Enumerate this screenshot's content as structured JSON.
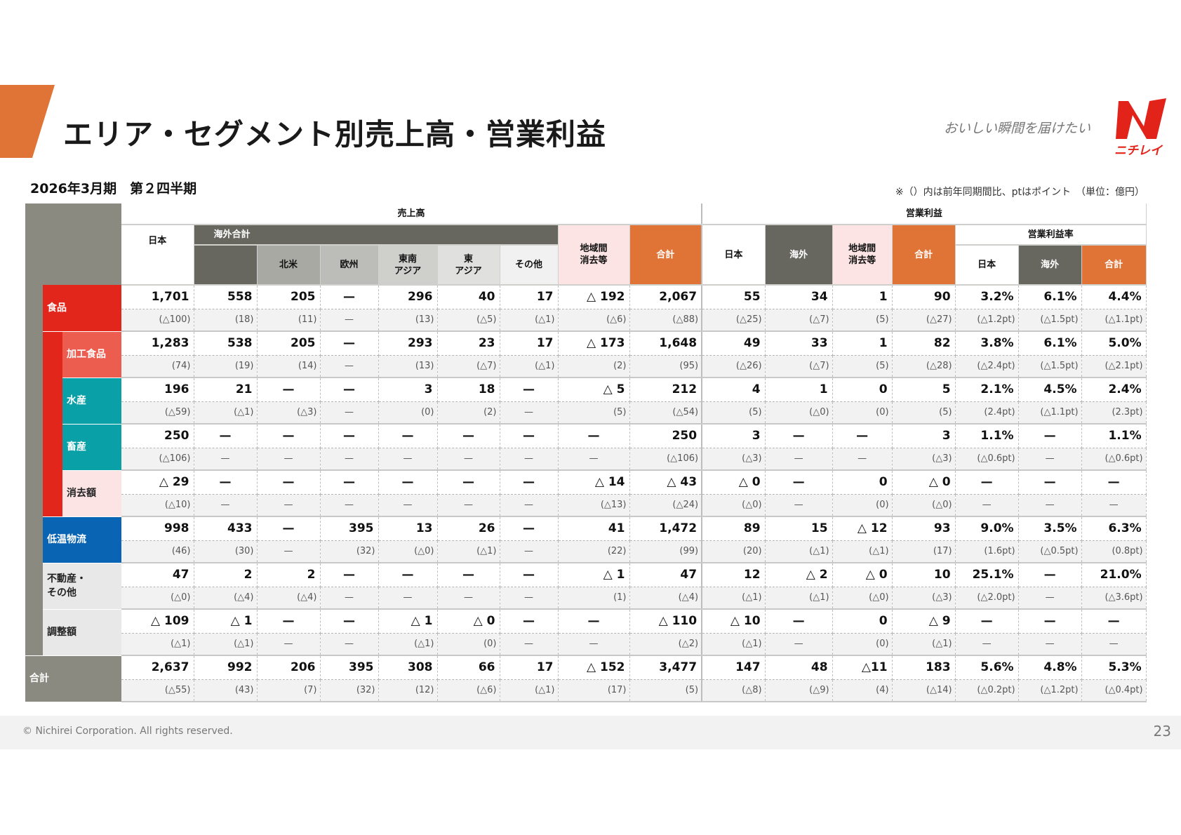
{
  "header": {
    "title": "エリア・セグメント別売上高・営業利益",
    "tagline": "おいしい瞬間を届けたい",
    "logo": {
      "text": "ニチレイ",
      "color": "#e2231a"
    },
    "accent": "#e07436"
  },
  "period": "2026年3月期　第２四半期",
  "note": "※（）内は前年同期間比、ptはポイント　（単位：億円）",
  "table": {
    "group_sales": "売上高",
    "group_op": "営業利益",
    "sales_cols": {
      "japan": "日本",
      "overseas_total": "海外合計",
      "na": "北米",
      "eu": "欧州",
      "sea": "東南\nアジア",
      "ea": "東\nアジア",
      "other": "その他",
      "elim": "地域間\n消去等",
      "total": "合計"
    },
    "op_cols": {
      "japan": "日本",
      "overseas": "海外",
      "elim": "地域間\n消去等",
      "total": "合計"
    },
    "margin": {
      "label": "営業利益率",
      "japan": "日本",
      "overseas": "海外",
      "total": "合計"
    },
    "rows": [
      {
        "label": "食品",
        "values": [
          "1,701",
          "558",
          "205",
          "—",
          "296",
          "40",
          "17",
          "△ 192",
          "2,067",
          "55",
          "34",
          "1",
          "90",
          "3.2%",
          "6.1%",
          "4.4%"
        ],
        "yoy": [
          "(△100)",
          "(18)",
          "(11)",
          "—",
          "(13)",
          "(△5)",
          "(△1)",
          "(△6)",
          "(△88)",
          "(△25)",
          "(△7)",
          "(5)",
          "(△27)",
          "(△1.2pt)",
          "(△1.5pt)",
          "(△1.1pt)"
        ]
      },
      {
        "label": "加工食品",
        "values": [
          "1,283",
          "538",
          "205",
          "—",
          "293",
          "23",
          "17",
          "△ 173",
          "1,648",
          "49",
          "33",
          "1",
          "82",
          "3.8%",
          "6.1%",
          "5.0%"
        ],
        "yoy": [
          "(74)",
          "(19)",
          "(14)",
          "—",
          "(13)",
          "(△7)",
          "(△1)",
          "(2)",
          "(95)",
          "(△26)",
          "(△7)",
          "(5)",
          "(△28)",
          "(△2.4pt)",
          "(△1.5pt)",
          "(△2.1pt)"
        ]
      },
      {
        "label": "水産",
        "values": [
          "196",
          "21",
          "—",
          "—",
          "3",
          "18",
          "—",
          "△ 5",
          "212",
          "4",
          "1",
          "0",
          "5",
          "2.1%",
          "4.5%",
          "2.4%"
        ],
        "yoy": [
          "(△59)",
          "(△1)",
          "(△3)",
          "—",
          "(0)",
          "(2)",
          "—",
          "(5)",
          "(△54)",
          "(5)",
          "(△0)",
          "(0)",
          "(5)",
          "(2.4pt)",
          "(△1.1pt)",
          "(2.3pt)"
        ]
      },
      {
        "label": "畜産",
        "values": [
          "250",
          "—",
          "—",
          "—",
          "—",
          "—",
          "—",
          "—",
          "250",
          "3",
          "—",
          "—",
          "3",
          "1.1%",
          "—",
          "1.1%"
        ],
        "yoy": [
          "(△106)",
          "—",
          "—",
          "—",
          "—",
          "—",
          "—",
          "—",
          "(△106)",
          "(△3)",
          "—",
          "—",
          "(△3)",
          "(△0.6pt)",
          "—",
          "(△0.6pt)"
        ]
      },
      {
        "label": "消去額",
        "values": [
          "△ 29",
          "—",
          "—",
          "—",
          "—",
          "—",
          "—",
          "△ 14",
          "△ 43",
          "△ 0",
          "—",
          "0",
          "△ 0",
          "—",
          "—",
          "—"
        ],
        "yoy": [
          "(△10)",
          "—",
          "—",
          "—",
          "—",
          "—",
          "—",
          "(△13)",
          "(△24)",
          "(△0)",
          "—",
          "(0)",
          "(△0)",
          "—",
          "—",
          "—"
        ]
      },
      {
        "label": "低温物流",
        "values": [
          "998",
          "433",
          "—",
          "395",
          "13",
          "26",
          "—",
          "41",
          "1,472",
          "89",
          "15",
          "△ 12",
          "93",
          "9.0%",
          "3.5%",
          "6.3%"
        ],
        "yoy": [
          "(46)",
          "(30)",
          "—",
          "(32)",
          "(△0)",
          "(△1)",
          "—",
          "(22)",
          "(99)",
          "(20)",
          "(△1)",
          "(△1)",
          "(17)",
          "(1.6pt)",
          "(△0.5pt)",
          "(0.8pt)"
        ]
      },
      {
        "label": "不動産・\nその他",
        "values": [
          "47",
          "2",
          "2",
          "—",
          "—",
          "—",
          "—",
          "△ 1",
          "47",
          "12",
          "△ 2",
          "△ 0",
          "10",
          "25.1%",
          "—",
          "21.0%"
        ],
        "yoy": [
          "(△0)",
          "(△4)",
          "(△4)",
          "—",
          "—",
          "—",
          "—",
          "(1)",
          "(△4)",
          "(△1)",
          "(△1)",
          "(△0)",
          "(△3)",
          "(△2.0pt)",
          "—",
          "(△3.6pt)"
        ]
      },
      {
        "label": "調整額",
        "values": [
          "△ 109",
          "△ 1",
          "—",
          "—",
          "△ 1",
          "△ 0",
          "—",
          "—",
          "△ 110",
          "△ 10",
          "—",
          "0",
          "△ 9",
          "—",
          "—",
          "—"
        ],
        "yoy": [
          "(△1)",
          "(△1)",
          "—",
          "—",
          "(△1)",
          "(0)",
          "—",
          "—",
          "(△2)",
          "(△1)",
          "—",
          "(0)",
          "(△1)",
          "—",
          "—",
          "—"
        ]
      },
      {
        "label": "合計",
        "values": [
          "2,637",
          "992",
          "206",
          "395",
          "308",
          "66",
          "17",
          "△ 152",
          "3,477",
          "147",
          "48",
          "△11",
          "183",
          "5.6%",
          "4.8%",
          "5.3%"
        ],
        "yoy": [
          "(△55)",
          "(43)",
          "(7)",
          "(32)",
          "(12)",
          "(△6)",
          "(△1)",
          "(17)",
          "(5)",
          "(△8)",
          "(△9)",
          "(4)",
          "(△14)",
          "(△0.2pt)",
          "(△1.2pt)",
          "(△0.4pt)"
        ]
      }
    ],
    "colors": {
      "food": "#e3261b",
      "processed": "#ec5c4f",
      "marine": "#0aa0a8",
      "logistics": "#0a64b4",
      "elim": "#fde4e4",
      "other": "#e8e8e8",
      "frame": "#8a8a80",
      "dark": "#676760"
    }
  },
  "footer": {
    "copyright": "© Nichirei Corporation. All rights reserved.",
    "page": "23"
  }
}
